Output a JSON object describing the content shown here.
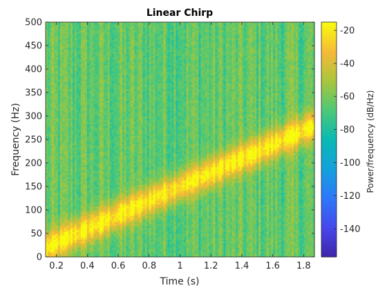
{
  "chart_data": {
    "type": "heatmap",
    "title": "Linear Chirp",
    "xlabel": "Time (s)",
    "ylabel": "Frequency (Hz)",
    "colorbar_label": "Power/frequency (dB/Hz)",
    "xlim": [
      0.13,
      1.87
    ],
    "ylim": [
      0,
      500
    ],
    "clim": [
      -157,
      -15
    ],
    "x_ticks": [
      0.2,
      0.4,
      0.6,
      0.8,
      1,
      1.2,
      1.4,
      1.6,
      1.8
    ],
    "x_tick_labels": [
      "0.2",
      "0.4",
      "0.6",
      "0.8",
      "1",
      "1.2",
      "1.4",
      "1.6",
      "1.8"
    ],
    "y_ticks": [
      0,
      50,
      100,
      150,
      200,
      250,
      300,
      350,
      400,
      450,
      500
    ],
    "y_tick_labels": [
      "0",
      "50",
      "100",
      "150",
      "200",
      "250",
      "300",
      "350",
      "400",
      "450",
      "500"
    ],
    "colorbar_ticks": [
      -20,
      -40,
      -60,
      -80,
      -100,
      -120,
      -140
    ],
    "colorbar_tick_labels": [
      "-20",
      "-40",
      "-60",
      "-80",
      "-100",
      "-120",
      "-140"
    ],
    "colormap": "parula",
    "ridge": {
      "description_points": [
        [
          0.13,
          20
        ],
        [
          1.87,
          280
        ]
      ],
      "peak_db": -17,
      "noise_floor_db": -65
    },
    "colors": {
      "axis": "#262626",
      "ridge": "#f9fb0e",
      "background_field": "#4ec27a"
    }
  }
}
